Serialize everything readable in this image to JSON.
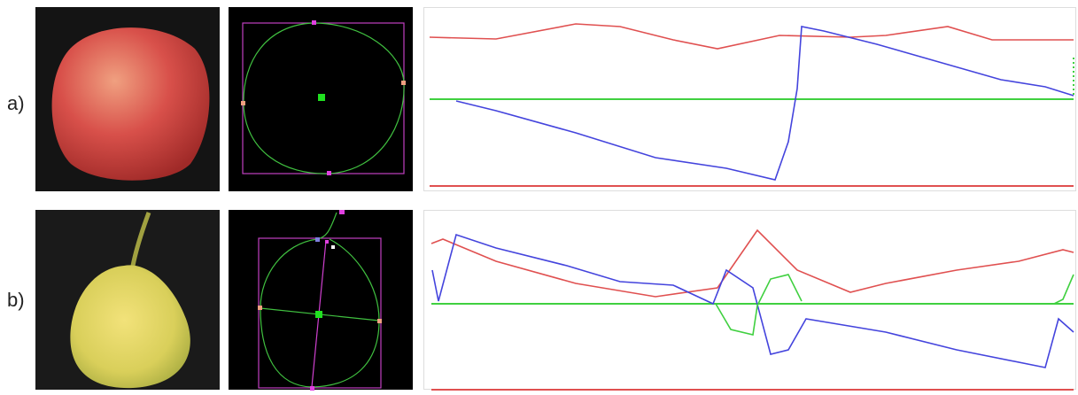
{
  "rows": [
    {
      "label": "a)"
    },
    {
      "label": "b)"
    }
  ]
}
